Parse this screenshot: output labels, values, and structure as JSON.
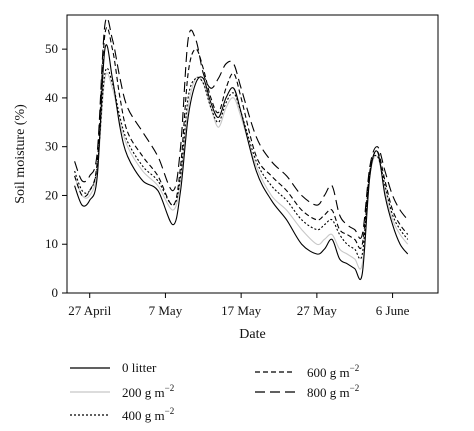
{
  "chart_data": {
    "type": "line",
    "title": "",
    "xlabel": "Date",
    "ylabel": "Soil moisture (%)",
    "x_ticks": [
      "27 April",
      "7 May",
      "17 May",
      "27 May",
      "6 June"
    ],
    "xlim": [
      "2011-04-24",
      "2011-06-12"
    ],
    "ylim": [
      0,
      57
    ],
    "y_ticks": [
      0,
      10,
      20,
      30,
      40,
      50
    ],
    "grid": false,
    "legend_position": "bottom",
    "series": [
      {
        "name": "0 litter",
        "color": "#000000",
        "dash": "solid",
        "x": [
          "2011-04-25",
          "2011-04-26",
          "2011-04-27",
          "2011-04-28",
          "2011-04-29",
          "2011-04-30",
          "2011-05-01",
          "2011-05-02",
          "2011-05-04",
          "2011-05-06",
          "2011-05-08",
          "2011-05-09",
          "2011-05-10",
          "2011-05-11",
          "2011-05-12",
          "2011-05-13",
          "2011-05-14",
          "2011-05-15",
          "2011-05-16",
          "2011-05-17",
          "2011-05-19",
          "2011-05-21",
          "2011-05-23",
          "2011-05-25",
          "2011-05-27",
          "2011-05-28",
          "2011-05-29",
          "2011-05-30",
          "2011-05-31",
          "2011-06-01",
          "2011-06-02",
          "2011-06-03",
          "2011-06-04",
          "2011-06-05",
          "2011-06-06",
          "2011-06-07",
          "2011-06-08"
        ],
        "y": [
          22,
          18,
          19,
          24,
          50,
          44,
          34,
          28,
          23,
          21,
          14,
          21,
          36,
          43,
          44,
          39,
          36,
          40,
          42,
          37,
          25,
          19,
          15,
          10,
          8,
          9,
          11,
          7,
          6,
          5,
          4,
          24,
          29,
          20,
          14,
          10,
          8
        ]
      },
      {
        "name": "200 g m",
        "color": "#c8c8c8",
        "dash": "solid",
        "x": [
          "2011-04-25",
          "2011-04-26",
          "2011-04-27",
          "2011-04-28",
          "2011-04-29",
          "2011-04-30",
          "2011-05-01",
          "2011-05-02",
          "2011-05-04",
          "2011-05-06",
          "2011-05-08",
          "2011-05-09",
          "2011-05-10",
          "2011-05-11",
          "2011-05-12",
          "2011-05-13",
          "2011-05-14",
          "2011-05-15",
          "2011-05-16",
          "2011-05-17",
          "2011-05-19",
          "2011-05-21",
          "2011-05-23",
          "2011-05-25",
          "2011-05-27",
          "2011-05-28",
          "2011-05-29",
          "2011-05-30",
          "2011-05-31",
          "2011-06-01",
          "2011-06-02",
          "2011-06-03",
          "2011-06-04",
          "2011-06-05",
          "2011-06-06",
          "2011-06-07",
          "2011-06-08"
        ],
        "y": [
          24,
          20,
          20,
          25,
          44,
          42,
          35,
          30,
          25,
          22,
          17,
          23,
          38,
          44,
          43,
          38,
          34,
          38,
          40,
          36,
          26,
          20,
          17,
          13,
          10,
          11,
          12,
          9,
          8,
          7,
          6,
          24,
          28,
          21,
          15,
          12,
          10
        ]
      },
      {
        "name": "400 g m",
        "color": "#000000",
        "dash": "2,2",
        "x": [
          "2011-04-25",
          "2011-04-26",
          "2011-04-27",
          "2011-04-28",
          "2011-04-29",
          "2011-04-30",
          "2011-05-01",
          "2011-05-02",
          "2011-05-04",
          "2011-05-06",
          "2011-05-08",
          "2011-05-09",
          "2011-05-10",
          "2011-05-11",
          "2011-05-12",
          "2011-05-13",
          "2011-05-14",
          "2011-05-15",
          "2011-05-16",
          "2011-05-17",
          "2011-05-19",
          "2011-05-21",
          "2011-05-23",
          "2011-05-25",
          "2011-05-27",
          "2011-05-28",
          "2011-05-29",
          "2011-05-30",
          "2011-05-31",
          "2011-06-01",
          "2011-06-02",
          "2011-06-03",
          "2011-06-04",
          "2011-06-05",
          "2011-06-06",
          "2011-06-07",
          "2011-06-08"
        ],
        "y": [
          25,
          21,
          21,
          26,
          45,
          43,
          36,
          31,
          26,
          23,
          18,
          24,
          40,
          44,
          43,
          38,
          35,
          39,
          41,
          37,
          27,
          22,
          19,
          15,
          13,
          14,
          15,
          12,
          10,
          9,
          8,
          25,
          28,
          22,
          16,
          13,
          11
        ]
      },
      {
        "name": "600 g m",
        "color": "#000000",
        "dash": "5,3",
        "x": [
          "2011-04-25",
          "2011-04-26",
          "2011-04-27",
          "2011-04-28",
          "2011-04-29",
          "2011-04-30",
          "2011-05-01",
          "2011-05-02",
          "2011-05-04",
          "2011-05-06",
          "2011-05-08",
          "2011-05-09",
          "2011-05-10",
          "2011-05-11",
          "2011-05-12",
          "2011-05-13",
          "2011-05-14",
          "2011-05-15",
          "2011-05-16",
          "2011-05-17",
          "2011-05-19",
          "2011-05-21",
          "2011-05-23",
          "2011-05-25",
          "2011-05-27",
          "2011-05-28",
          "2011-05-29",
          "2011-05-30",
          "2011-05-31",
          "2011-06-01",
          "2011-06-02",
          "2011-06-03",
          "2011-06-04",
          "2011-06-05",
          "2011-06-06",
          "2011-06-07",
          "2011-06-08"
        ],
        "y": [
          24,
          20,
          21,
          27,
          53,
          50,
          40,
          33,
          28,
          24,
          18,
          26,
          45,
          50,
          46,
          40,
          37,
          42,
          45,
          40,
          28,
          24,
          21,
          17,
          15,
          16,
          17,
          13,
          12,
          11,
          10,
          25,
          29,
          23,
          17,
          14,
          12
        ]
      },
      {
        "name": "800 g m",
        "color": "#000000",
        "dash": "10,5",
        "x": [
          "2011-04-25",
          "2011-04-26",
          "2011-04-27",
          "2011-04-28",
          "2011-04-29",
          "2011-04-30",
          "2011-05-01",
          "2011-05-02",
          "2011-05-04",
          "2011-05-06",
          "2011-05-08",
          "2011-05-09",
          "2011-05-10",
          "2011-05-11",
          "2011-05-12",
          "2011-05-13",
          "2011-05-14",
          "2011-05-15",
          "2011-05-16",
          "2011-05-17",
          "2011-05-19",
          "2011-05-21",
          "2011-05-23",
          "2011-05-25",
          "2011-05-27",
          "2011-05-28",
          "2011-05-29",
          "2011-05-30",
          "2011-05-31",
          "2011-06-01",
          "2011-06-02",
          "2011-06-03",
          "2011-06-04",
          "2011-06-05",
          "2011-06-06",
          "2011-06-07",
          "2011-06-08"
        ],
        "y": [
          27,
          23,
          24,
          29,
          55,
          52,
          44,
          38,
          33,
          28,
          21,
          30,
          52,
          52,
          45,
          42,
          44,
          47,
          47,
          42,
          32,
          27,
          24,
          20,
          18,
          20,
          22,
          16,
          14,
          13,
          12,
          26,
          30,
          25,
          20,
          17,
          15
        ]
      }
    ]
  },
  "legend": {
    "items": [
      {
        "label": "0 litter",
        "suffix": ""
      },
      {
        "label": "200 g m",
        "suffix": "−2"
      },
      {
        "label": "400 g m",
        "suffix": "−2"
      },
      {
        "label": "600 g m",
        "suffix": "−2"
      },
      {
        "label": "800 g m",
        "suffix": "−2"
      }
    ]
  }
}
